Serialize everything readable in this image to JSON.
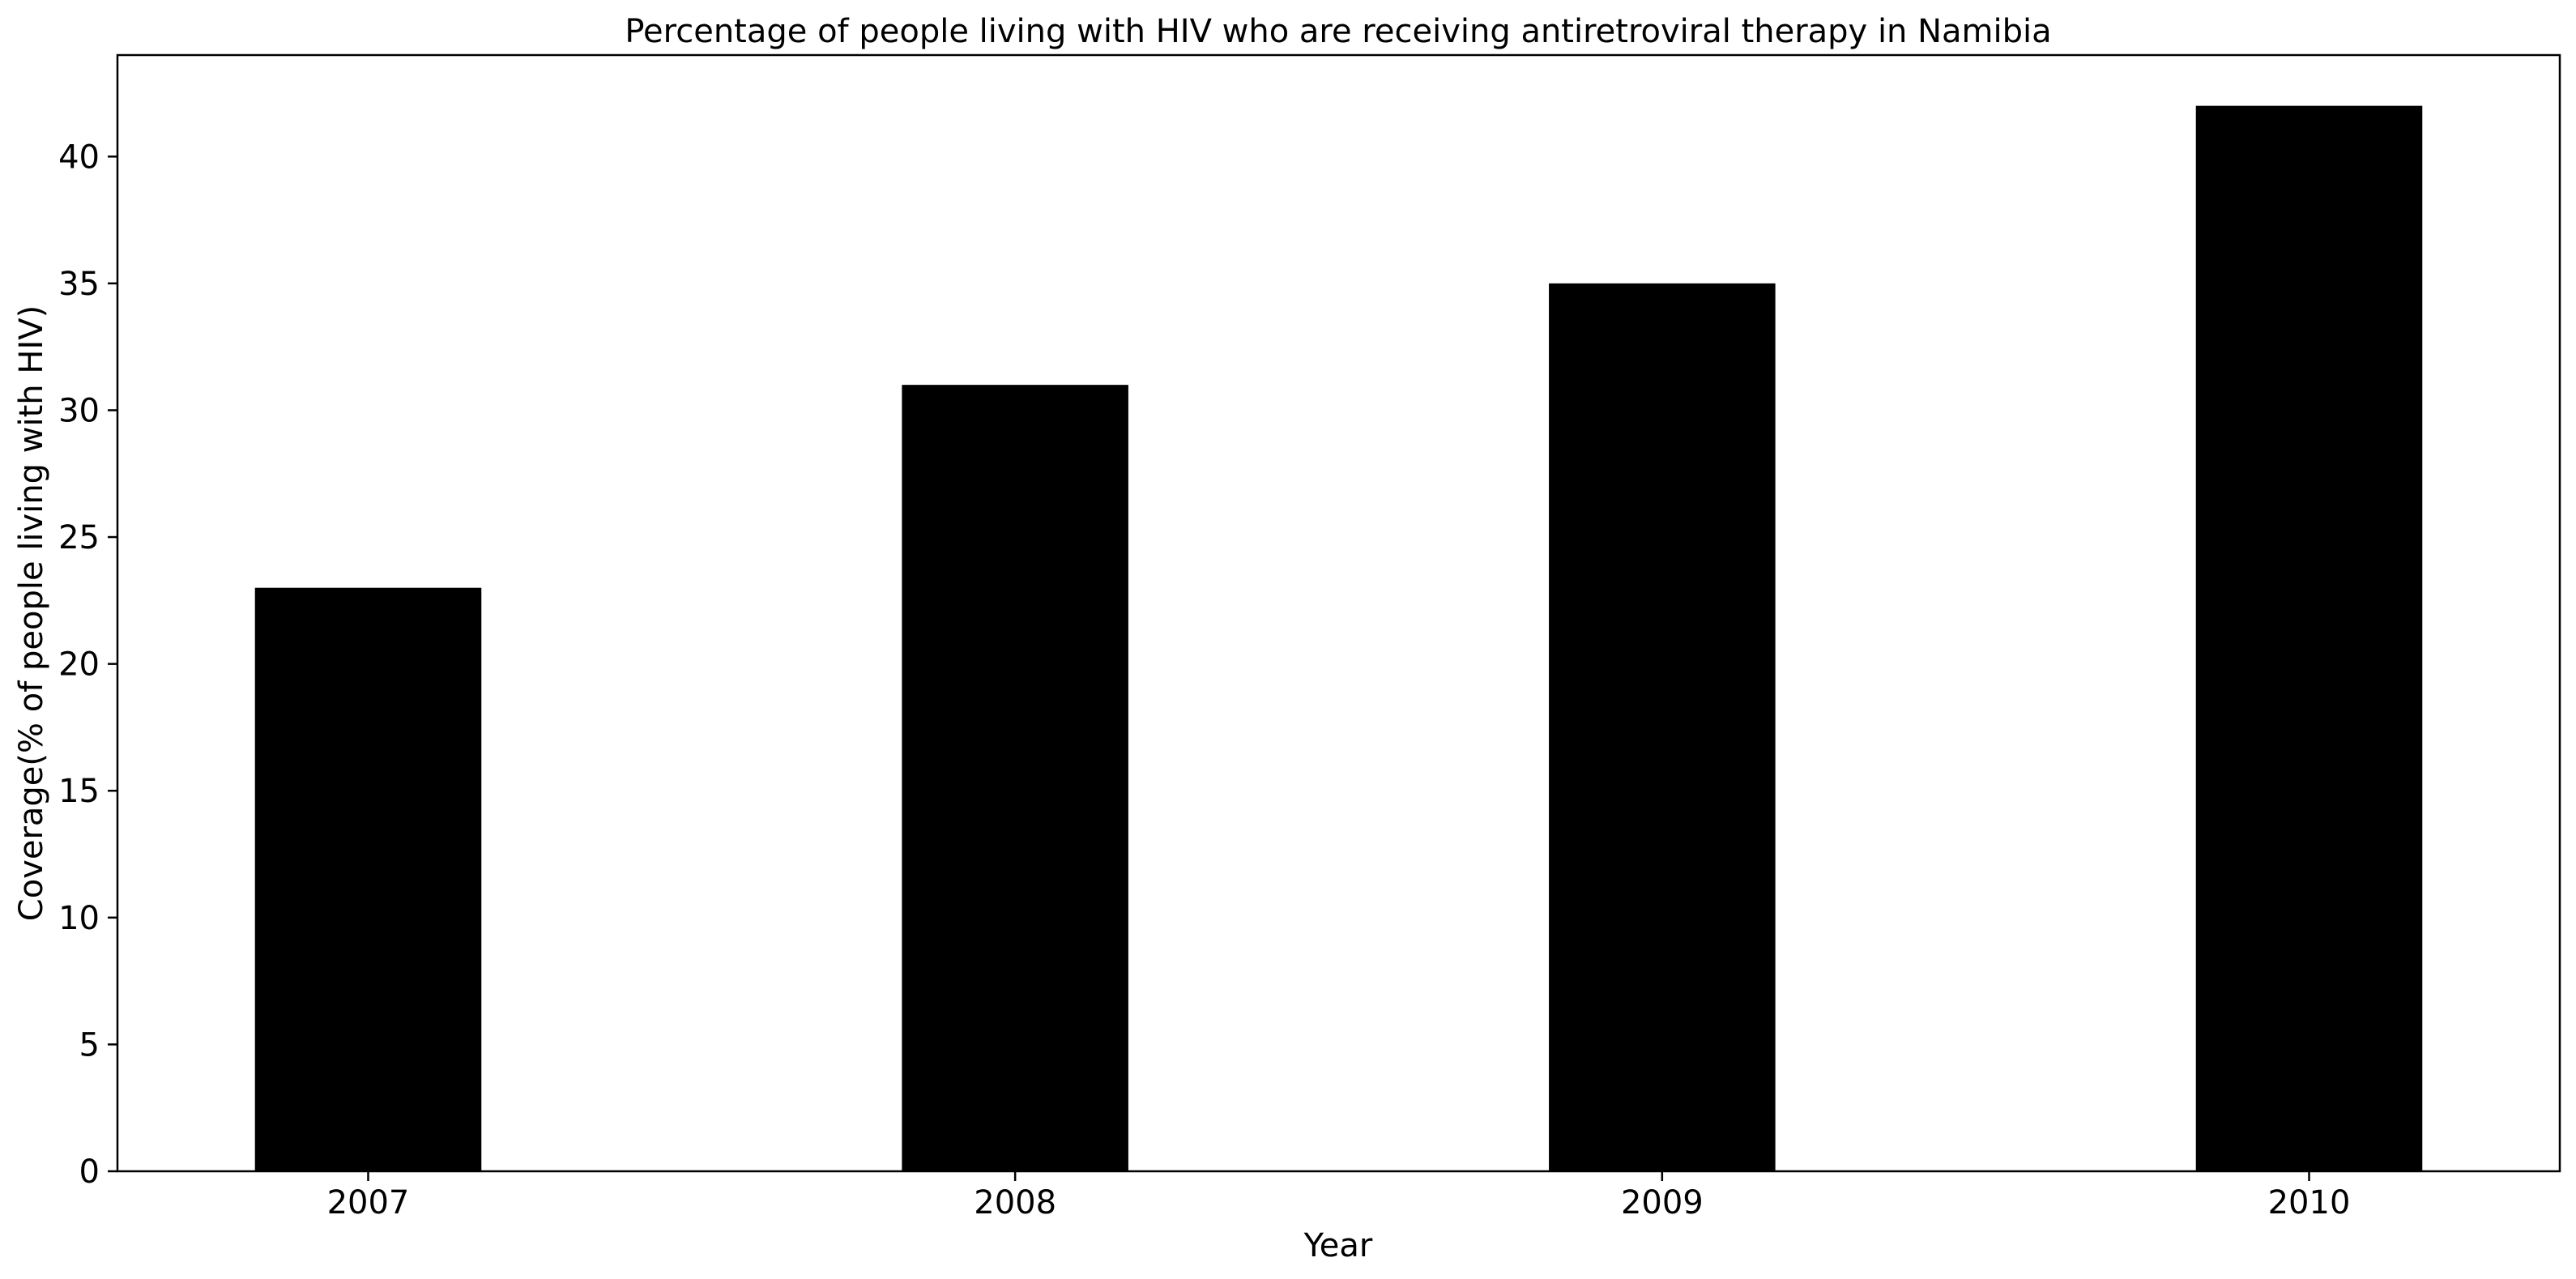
{
  "chart_data": {
    "type": "bar",
    "title": "Percentage of people living with HIV who are receiving antiretroviral therapy in Namibia",
    "xlabel": "Year",
    "ylabel": "Coverage(% of people living with HIV)",
    "categories": [
      "2007",
      "2008",
      "2009",
      "2010"
    ],
    "values": [
      23,
      31,
      35,
      42
    ],
    "ylim": [
      0,
      44
    ],
    "yticks": [
      0,
      5,
      10,
      15,
      20,
      25,
      30,
      35,
      40
    ],
    "grid": false,
    "legend": "none",
    "bar_color": "#000000"
  }
}
